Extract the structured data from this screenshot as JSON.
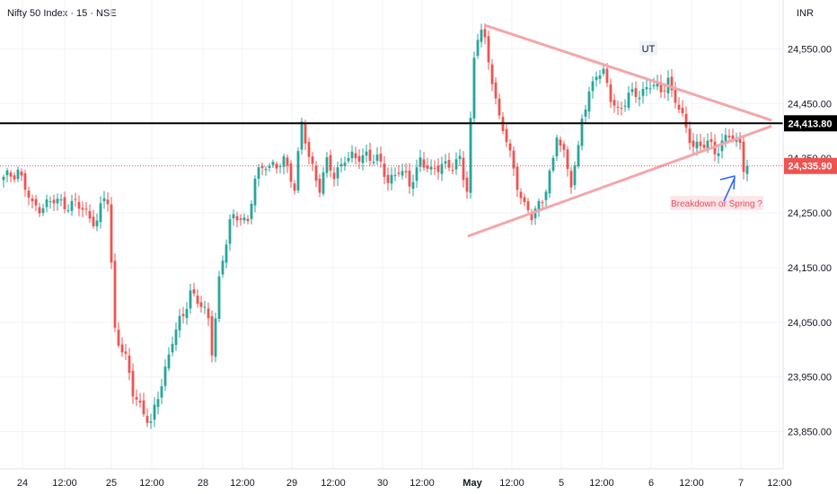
{
  "header": {
    "title": "Nifty 50 Index · 15 · NSE",
    "currency": "INR"
  },
  "colors": {
    "up": "#26a69a",
    "down": "#ef5350",
    "trendline": "#f4a6ab",
    "level": "#000000",
    "price_line": "#ef5350",
    "arrow": "#2962ff",
    "annotation_text": "#e84a5f",
    "grid": "#f0f3fa"
  },
  "chart_data": {
    "type": "candlestick",
    "ylim": [
      23800,
      24640
    ],
    "y_ticks": [
      {
        "value": 24550,
        "label": "24,550.00"
      },
      {
        "value": 24450,
        "label": "24,450.00"
      },
      {
        "value": 24350,
        "label": "24,350.00"
      },
      {
        "value": 24250,
        "label": "24,250.00"
      },
      {
        "value": 24150,
        "label": "24,150.00"
      },
      {
        "value": 24050,
        "label": "24,050.00"
      },
      {
        "value": 23950,
        "label": "23,950.00"
      },
      {
        "value": 23850,
        "label": "23,850.00"
      }
    ],
    "x_ticks": [
      {
        "label": "24",
        "bold": false
      },
      {
        "label": "12:00",
        "bold": false
      },
      {
        "label": "25",
        "bold": false
      },
      {
        "label": "12:00",
        "bold": false
      },
      {
        "label": "28",
        "bold": false
      },
      {
        "label": "12:00",
        "bold": false
      },
      {
        "label": "29",
        "bold": false
      },
      {
        "label": "12:00",
        "bold": false
      },
      {
        "label": "30",
        "bold": false
      },
      {
        "label": "12:00",
        "bold": false
      },
      {
        "label": "May",
        "bold": true
      },
      {
        "label": "12:00",
        "bold": false
      },
      {
        "label": "5",
        "bold": false
      },
      {
        "label": "12:00",
        "bold": false
      },
      {
        "label": "6",
        "bold": false
      },
      {
        "label": "12:00",
        "bold": false
      },
      {
        "label": "7",
        "bold": false
      },
      {
        "label": "12:00",
        "bold": false
      }
    ],
    "keypoints": [
      [
        0,
        24310
      ],
      [
        4,
        24330
      ],
      [
        8,
        24260
      ],
      [
        14,
        24270
      ],
      [
        20,
        24265
      ],
      [
        26,
        24235
      ],
      [
        28,
        24275
      ],
      [
        29,
        24270
      ],
      [
        31,
        24040
      ],
      [
        34,
        23980
      ],
      [
        36,
        23920
      ],
      [
        39,
        23890
      ],
      [
        41,
        23860
      ],
      [
        44,
        23940
      ],
      [
        47,
        24020
      ],
      [
        50,
        24060
      ],
      [
        52,
        24110
      ],
      [
        55,
        24080
      ],
      [
        57,
        24050
      ],
      [
        58,
        24000
      ],
      [
        60,
        24130
      ],
      [
        63,
        24230
      ],
      [
        66,
        24250
      ],
      [
        68,
        24230
      ],
      [
        70,
        24310
      ],
      [
        73,
        24345
      ],
      [
        76,
        24330
      ],
      [
        78,
        24345
      ],
      [
        80,
        24320
      ],
      [
        81,
        24300
      ],
      [
        83,
        24410
      ],
      [
        85,
        24350
      ],
      [
        88,
        24300
      ],
      [
        90,
        24340
      ],
      [
        92,
        24315
      ],
      [
        95,
        24355
      ],
      [
        98,
        24345
      ],
      [
        101,
        24360
      ],
      [
        104,
        24345
      ],
      [
        107,
        24310
      ],
      [
        110,
        24330
      ],
      [
        113,
        24300
      ],
      [
        116,
        24350
      ],
      [
        119,
        24320
      ],
      [
        122,
        24345
      ],
      [
        125,
        24330
      ],
      [
        127,
        24345
      ],
      [
        128,
        24320
      ],
      [
        129,
        24300
      ],
      [
        130,
        24420
      ],
      [
        131,
        24530
      ],
      [
        132,
        24570
      ],
      [
        133,
        24580
      ],
      [
        134,
        24560
      ],
      [
        136,
        24500
      ],
      [
        138,
        24420
      ],
      [
        140,
        24380
      ],
      [
        142,
        24330
      ],
      [
        145,
        24260
      ],
      [
        147,
        24240
      ],
      [
        150,
        24280
      ],
      [
        153,
        24340
      ],
      [
        154,
        24390
      ],
      [
        156,
        24360
      ],
      [
        158,
        24310
      ],
      [
        160,
        24360
      ],
      [
        161,
        24420
      ],
      [
        163,
        24470
      ],
      [
        165,
        24510
      ],
      [
        167,
        24500
      ],
      [
        169,
        24460
      ],
      [
        171,
        24440
      ],
      [
        174,
        24460
      ],
      [
        177,
        24470
      ],
      [
        180,
        24485
      ],
      [
        183,
        24470
      ],
      [
        185,
        24500
      ],
      [
        186,
        24470
      ],
      [
        188,
        24440
      ],
      [
        190,
        24400
      ],
      [
        192,
        24380
      ],
      [
        194,
        24370
      ],
      [
        196,
        24375
      ],
      [
        198,
        24365
      ],
      [
        200,
        24380
      ],
      [
        202,
        24390
      ],
      [
        204,
        24375
      ],
      [
        205,
        24380
      ],
      [
        206,
        24340
      ],
      [
        207,
        24336
      ]
    ],
    "trendlines": [
      {
        "name": "upper",
        "x1": 135,
        "y1": 24592,
        "x2": 214,
        "y2": 24420
      },
      {
        "name": "lower",
        "x1": 130,
        "y1": 24208,
        "x2": 214,
        "y2": 24408
      }
    ],
    "level_line": {
      "value": 24413.8,
      "label": "24,413.80"
    },
    "last_price": {
      "value": 24335.9,
      "label": "24,335.90"
    },
    "annotations": [
      {
        "text": "UT",
        "x": 180,
        "value": 24505
      },
      {
        "text": "Breakdown or Spring ?",
        "x": 199,
        "value": 24268
      }
    ]
  }
}
